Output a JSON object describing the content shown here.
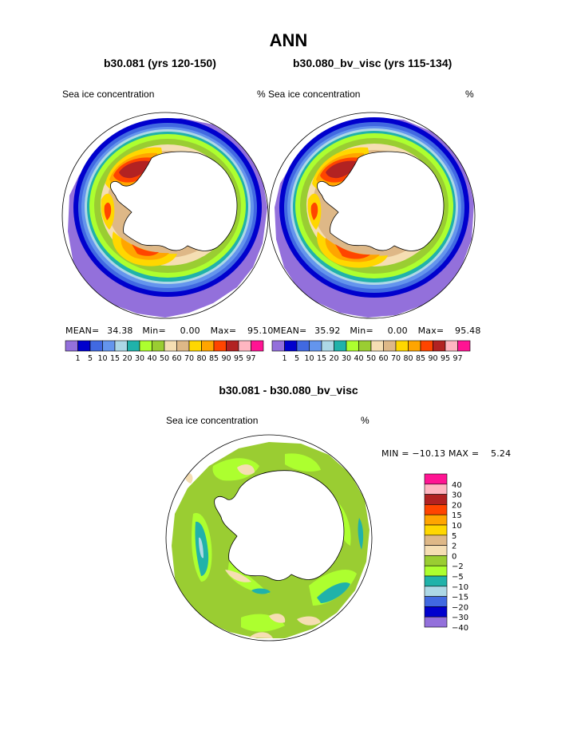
{
  "title": "ANN",
  "colors": {
    "conc": [
      "#9370db",
      "#0000cd",
      "#4169e1",
      "#6495ed",
      "#add8e6",
      "#20b2aa",
      "#adff2f",
      "#9acd32",
      "#f5deb3",
      "#deb887",
      "#ffd700",
      "#ffa500",
      "#ff4500",
      "#b22222",
      "#ffb6c1",
      "#ff1493"
    ],
    "diff": [
      "#ff1493",
      "#ffb6c1",
      "#b22222",
      "#ff4500",
      "#ffa500",
      "#ffd700",
      "#deb887",
      "#f5deb3",
      "#9acd32",
      "#adff2f",
      "#20b2aa",
      "#add8e6",
      "#4169e1",
      "#0000cd",
      "#9370db"
    ],
    "land": "#ffffff",
    "coast": "#000000"
  },
  "panels": [
    {
      "subtitle": "b30.081 (yrs 120-150)",
      "left_label": "Sea ice concentration",
      "right_label": "%",
      "mean_label": "MEAN=",
      "mean": "34.38",
      "min_label": "Min=",
      "min": "0.00",
      "max_label": "Max=",
      "max": "95.10",
      "ticks": [
        "1",
        "5",
        "10",
        "15",
        "20",
        "30",
        "40",
        "50",
        "60",
        "70",
        "80",
        "85",
        "90",
        "95",
        "97"
      ]
    },
    {
      "subtitle": "b30.080_bv_visc (yrs 115-134)",
      "left_label": "% Sea ice concentration",
      "right_label": "%",
      "mean_label": "MEAN=",
      "mean": "35.92",
      "min_label": "Min=",
      "min": "0.00",
      "max_label": "Max=",
      "max": "95.48",
      "ticks": [
        "1",
        "5",
        "10",
        "15",
        "20",
        "30",
        "40",
        "50",
        "60",
        "70",
        "80",
        "85",
        "90",
        "95",
        "97"
      ]
    }
  ],
  "diff_panel": {
    "subtitle": "b30.081 - b30.080_bv_visc",
    "left_label": "Sea ice concentration",
    "right_label": "%",
    "minmax_text": "MIN = −10.13 MAX =    5.24",
    "ticks": [
      "40",
      "30",
      "20",
      "15",
      "10",
      "5",
      "2",
      "0",
      "−2",
      "−5",
      "−10",
      "−15",
      "−20",
      "−30",
      "−40"
    ]
  }
}
